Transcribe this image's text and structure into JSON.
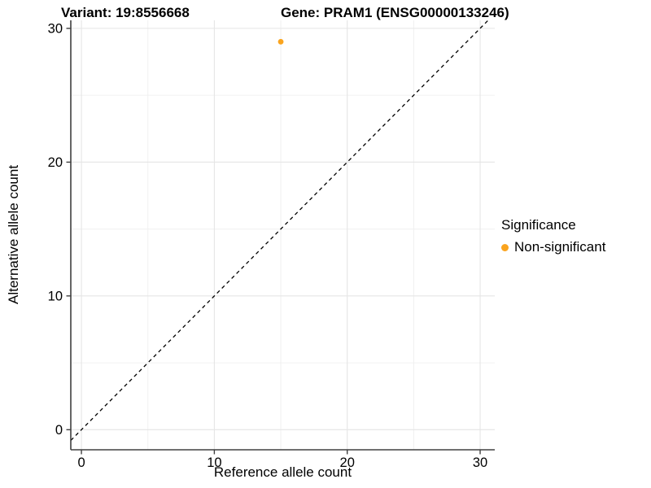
{
  "header": {
    "variant_title": "Variant: 19:8556668",
    "gene_title": "Gene: PRAM1 (ENSG00000133246)"
  },
  "chart_data": {
    "type": "scatter",
    "xlabel": "Reference allele count",
    "ylabel": "Alternative allele count",
    "xticks": [
      0,
      10,
      20,
      30
    ],
    "yticks": [
      0,
      10,
      20,
      30
    ],
    "minor_xticks": [
      5,
      15,
      25
    ],
    "minor_yticks": [
      5,
      15,
      25
    ],
    "xlim": [
      -0.8,
      31.1
    ],
    "ylim": [
      -1.5,
      30.6
    ],
    "points": [
      {
        "x": 15,
        "y": 29,
        "series": "Non-significant"
      }
    ],
    "identity_line": {
      "slope": 1,
      "intercept": 0,
      "style": "dashed",
      "color": "#000000"
    },
    "legend": {
      "title": "Significance",
      "position": "right",
      "entries": [
        {
          "label": "Non-significant",
          "color": "#FAA41E"
        }
      ]
    },
    "style": {
      "background": "#ffffff",
      "major_grid_color": "#e5e5e5",
      "minor_grid_color": "#f0f0f0",
      "axis_color": "#404040",
      "text_color": "#000000",
      "point_radius": 3.4
    }
  }
}
